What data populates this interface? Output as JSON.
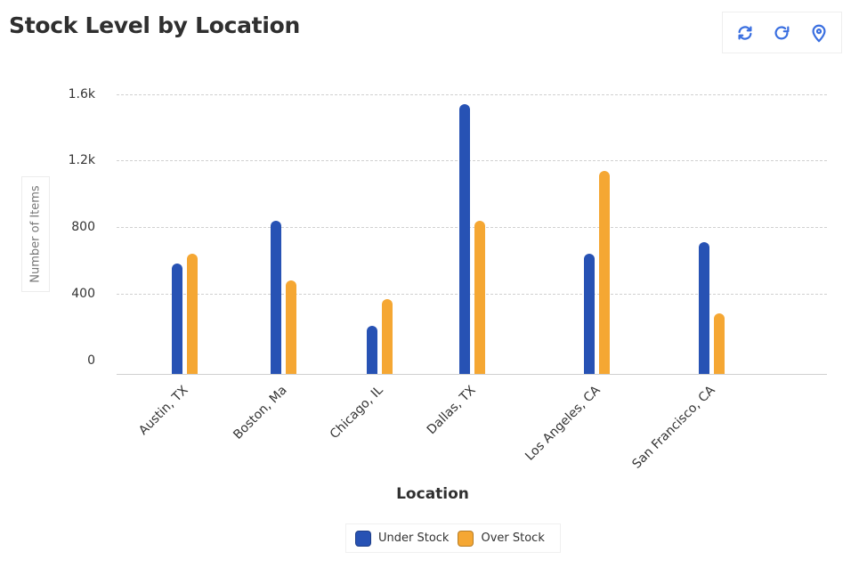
{
  "header": {
    "title": "Stock Level by Location",
    "toolbar": [
      {
        "icon": "sync-icon",
        "label": "Sync"
      },
      {
        "icon": "refresh-icon",
        "label": "Refresh"
      },
      {
        "icon": "location-pin-icon",
        "label": "Location"
      }
    ]
  },
  "colors": {
    "under_stock": "#2752b4",
    "over_stock": "#f5a733",
    "icon": "#3a6fe0"
  },
  "chart_data": {
    "type": "bar",
    "title": "Stock Level by Location",
    "xlabel": "Location",
    "ylabel": "Number of Items",
    "ylim": [
      0,
      1600
    ],
    "y_ticks": [
      "0",
      "400",
      "800",
      "1.2k",
      "1.6k"
    ],
    "grid": true,
    "legend_position": "bottom",
    "categories": [
      "Austin, TX",
      "Boston, Ma",
      "Chicago, IL",
      "Dallas, TX",
      "Los Angeles, CA",
      "San Francisco, CA"
    ],
    "series": [
      {
        "name": "Under Stock",
        "color": "#2752b4",
        "values": [
          580,
          840,
          210,
          1540,
          640,
          710
        ]
      },
      {
        "name": "Over Stock",
        "color": "#f5a733",
        "values": [
          640,
          480,
          370,
          840,
          1140,
          280
        ]
      }
    ]
  },
  "legend": [
    {
      "label": "Under Stock",
      "color": "#2752b4"
    },
    {
      "label": "Over Stock",
      "color": "#f5a733"
    }
  ]
}
